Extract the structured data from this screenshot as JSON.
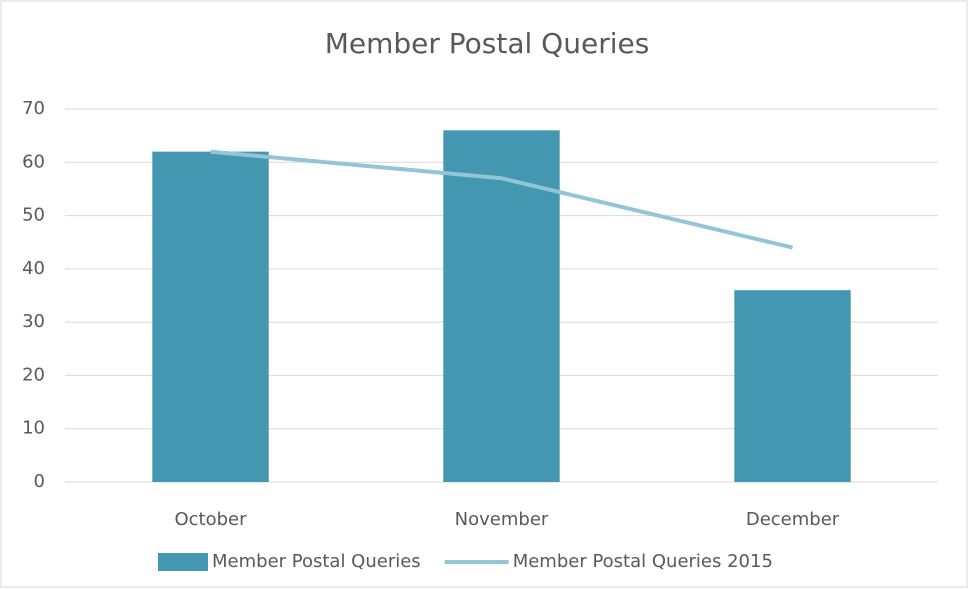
{
  "chart_data": {
    "type": "bar",
    "title": "Member Postal Queries",
    "categories": [
      "October",
      "November",
      "December"
    ],
    "series": [
      {
        "name": "Member Postal Queries",
        "type": "bar",
        "color": "#4397b0",
        "values": [
          62,
          66,
          36
        ]
      },
      {
        "name": "Member Postal Queries 2015",
        "type": "line",
        "color": "#92c5d6",
        "values": [
          62,
          57,
          44
        ]
      }
    ],
    "ylim": [
      0,
      70
    ],
    "yticks": [
      0,
      10,
      20,
      30,
      40,
      50,
      60,
      70
    ],
    "grid": true,
    "legend": "bottom"
  }
}
